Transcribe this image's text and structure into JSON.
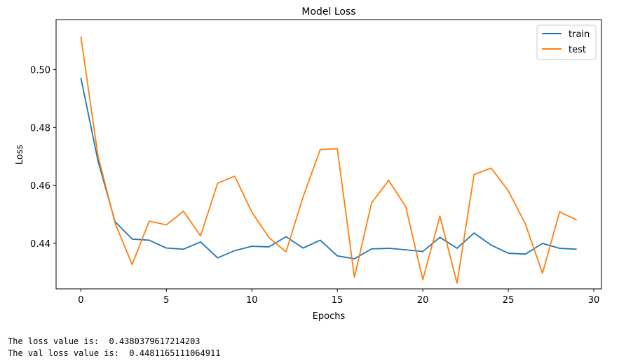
{
  "chart_data": {
    "type": "line",
    "title": "Model Loss",
    "xlabel": "Epochs",
    "ylabel": "Loss",
    "xlim": [
      -1.45,
      30.45
    ],
    "ylim": [
      0.4243,
      0.5173
    ],
    "x_ticks": [
      0,
      5,
      10,
      15,
      20,
      25,
      30
    ],
    "y_ticks": [
      0.44,
      0.46,
      0.48,
      0.5
    ],
    "y_tick_labels": [
      "0.44",
      "0.46",
      "0.48",
      "0.50"
    ],
    "legend_position": "top-right",
    "grid": false,
    "x": [
      0,
      1,
      2,
      3,
      4,
      5,
      6,
      7,
      8,
      9,
      10,
      11,
      12,
      13,
      14,
      15,
      16,
      17,
      18,
      19,
      20,
      21,
      22,
      23,
      24,
      25,
      26,
      27,
      28,
      29
    ],
    "series": [
      {
        "name": "train",
        "color": "#1f77b4",
        "values": [
          0.4972,
          0.4685,
          0.4475,
          0.4415,
          0.4411,
          0.4384,
          0.438,
          0.4405,
          0.435,
          0.4375,
          0.439,
          0.4388,
          0.4423,
          0.4384,
          0.4411,
          0.4357,
          0.4347,
          0.4381,
          0.4383,
          0.4378,
          0.4372,
          0.4421,
          0.4383,
          0.4436,
          0.4394,
          0.4366,
          0.4363,
          0.44,
          0.4383,
          0.438
        ]
      },
      {
        "name": "test",
        "color": "#ff7f0e",
        "values": [
          0.5114,
          0.4703,
          0.447,
          0.4327,
          0.4477,
          0.4464,
          0.4511,
          0.4426,
          0.4608,
          0.4632,
          0.4508,
          0.442,
          0.4371,
          0.4561,
          0.4724,
          0.4727,
          0.4283,
          0.4539,
          0.4618,
          0.4527,
          0.4275,
          0.4494,
          0.4263,
          0.4638,
          0.466,
          0.4582,
          0.4467,
          0.4297,
          0.4509,
          0.4481
        ]
      }
    ]
  },
  "output": {
    "loss_line": "The loss value is:  0.4380379617214203",
    "val_loss_line": "The val loss value is:  0.4481165111064911"
  }
}
